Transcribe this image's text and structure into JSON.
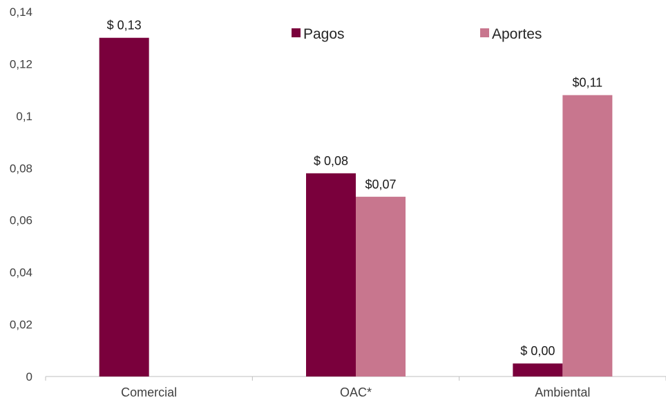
{
  "chart_data": {
    "type": "bar",
    "title": "",
    "xlabel": "",
    "ylabel": "",
    "categories": [
      "Comercial",
      "OAC*",
      "Ambiental"
    ],
    "series": [
      {
        "name": "Pagos",
        "color": "#7a003c",
        "values": [
          0.13,
          0.078,
          0.005
        ],
        "labels": [
          "$ 0,13",
          "$ 0,08",
          "$ 0,00"
        ]
      },
      {
        "name": "Aportes",
        "color": "#c8768e",
        "values": [
          null,
          0.069,
          0.108
        ],
        "labels": [
          null,
          "$0,07",
          "$0,11"
        ]
      }
    ],
    "ylim": [
      0,
      0.14
    ],
    "yticks": [
      0,
      0.02,
      0.04,
      0.06,
      0.08,
      0.1,
      0.12,
      0.14
    ],
    "ytick_labels": [
      "0",
      "0,02",
      "0,04",
      "0,06",
      "0,08",
      "0,1",
      "0,12",
      "0,14"
    ],
    "grid": false,
    "legend_position": "top-right"
  }
}
